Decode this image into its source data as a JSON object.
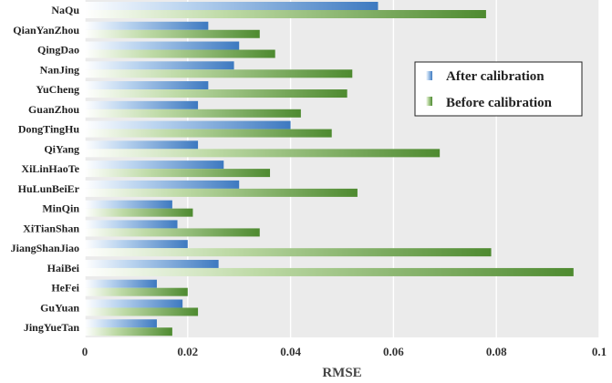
{
  "chart_data": {
    "type": "bar",
    "orientation": "horizontal",
    "categories": [
      "NaQu",
      "QianYanZhou",
      "QingDao",
      "NanJing",
      "YuCheng",
      "GuanZhou",
      "DongTingHu",
      "QiYang",
      "XiLinHaoTe",
      "HuLunBeiEr",
      "MinQin",
      "XiTianShan",
      "JiangShanJiao",
      "HaiBei",
      "HeFei",
      "GuYuan",
      "JingYueTan"
    ],
    "series": [
      {
        "name": "After calibration",
        "color": "#4a86c8",
        "values": [
          0.057,
          0.024,
          0.03,
          0.029,
          0.024,
          0.022,
          0.04,
          0.022,
          0.027,
          0.03,
          0.017,
          0.018,
          0.02,
          0.026,
          0.014,
          0.019,
          0.014
        ]
      },
      {
        "name": "Before calibration",
        "color": "#5e9a3e",
        "values": [
          0.078,
          0.034,
          0.037,
          0.052,
          0.051,
          0.042,
          0.048,
          0.069,
          0.036,
          0.053,
          0.021,
          0.034,
          0.079,
          0.095,
          0.02,
          0.022,
          0.017
        ]
      }
    ],
    "xlabel": "RMSE",
    "xlim": [
      0,
      0.1
    ],
    "xticks": [
      "0",
      "0.02",
      "0.04",
      "0.06",
      "0.08",
      "0.1"
    ],
    "grid": "vertical",
    "legend": "right"
  }
}
